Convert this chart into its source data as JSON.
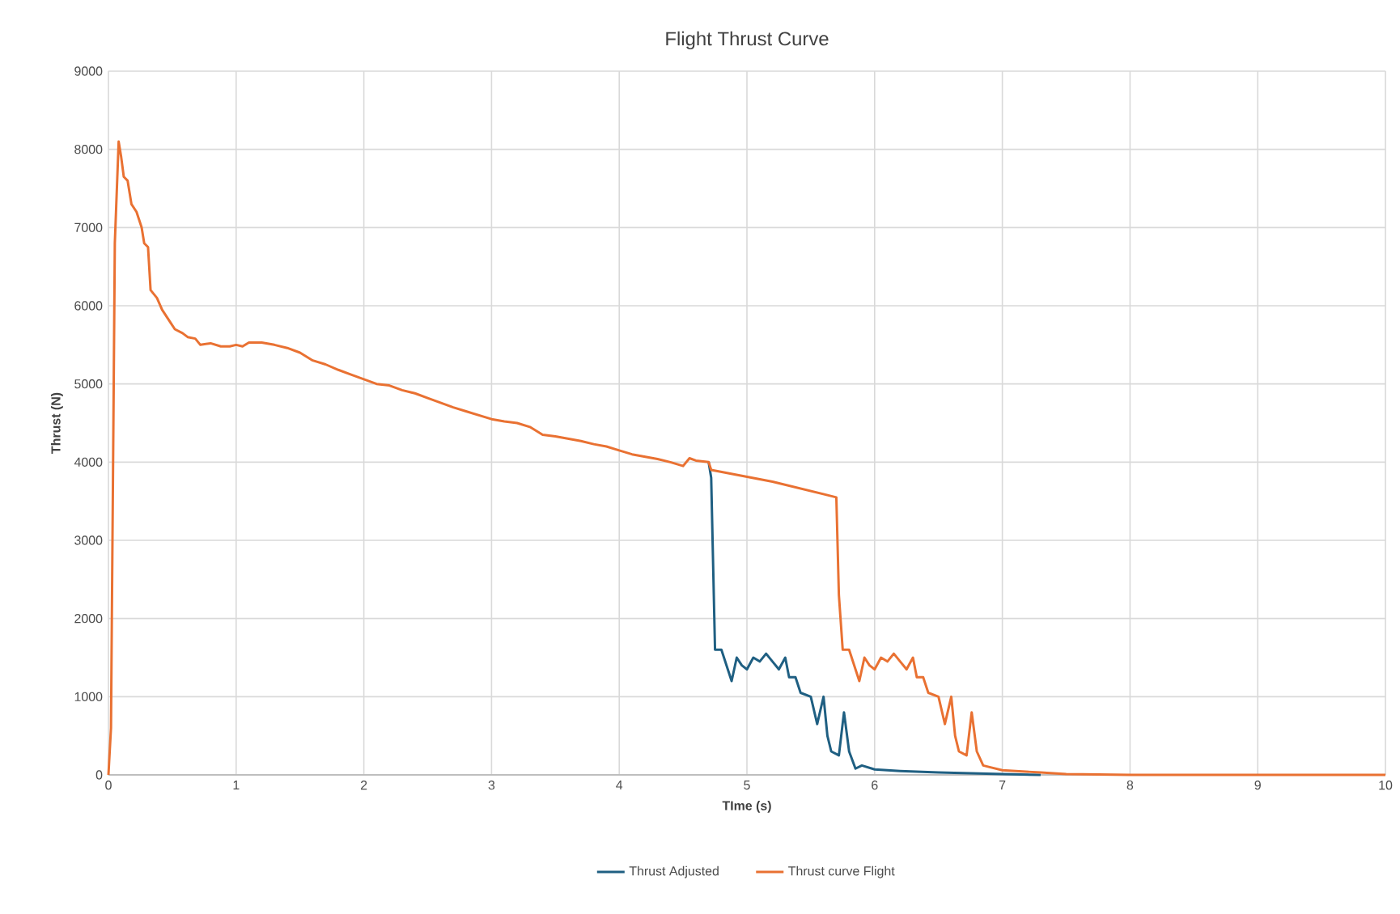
{
  "chart_data": {
    "type": "line",
    "title": "Flight Thrust Curve",
    "xlabel": "TIme (s)",
    "ylabel": "Thrust (N)",
    "xlim": [
      0,
      10
    ],
    "ylim": [
      0,
      9000
    ],
    "xticks": [
      0,
      1,
      2,
      3,
      4,
      5,
      6,
      7,
      8,
      9,
      10
    ],
    "yticks": [
      0,
      1000,
      2000,
      3000,
      4000,
      5000,
      6000,
      7000,
      8000,
      9000
    ],
    "grid": true,
    "legend": "bottom",
    "marker": "none",
    "line_style": "solid",
    "series": [
      {
        "name": "Thrust Adjusted",
        "color": "#1f5f82",
        "x": [
          4.7,
          4.72,
          4.75,
          4.8,
          4.85,
          4.88,
          4.92,
          4.96,
          5.0,
          5.05,
          5.1,
          5.15,
          5.2,
          5.25,
          5.3,
          5.33,
          5.38,
          5.42,
          5.5,
          5.55,
          5.6,
          5.63,
          5.66,
          5.72,
          5.76,
          5.8,
          5.85,
          5.9,
          6.0,
          6.1,
          6.2,
          6.5,
          7.0,
          7.3
        ],
        "values": [
          4000,
          3800,
          1600,
          1600,
          1350,
          1200,
          1500,
          1400,
          1350,
          1500,
          1450,
          1550,
          1450,
          1350,
          1500,
          1250,
          1250,
          1050,
          1000,
          650,
          1000,
          500,
          300,
          250,
          800,
          300,
          80,
          120,
          70,
          60,
          50,
          30,
          10,
          0
        ]
      },
      {
        "name": "Thrust curve Flight",
        "color": "#e97132",
        "x": [
          0,
          0.02,
          0.05,
          0.08,
          0.1,
          0.12,
          0.15,
          0.18,
          0.22,
          0.26,
          0.28,
          0.31,
          0.33,
          0.38,
          0.42,
          0.48,
          0.52,
          0.58,
          0.62,
          0.68,
          0.72,
          0.8,
          0.88,
          0.95,
          1.0,
          1.05,
          1.1,
          1.2,
          1.3,
          1.4,
          1.5,
          1.6,
          1.7,
          1.8,
          1.9,
          2.0,
          2.1,
          2.2,
          2.3,
          2.4,
          2.5,
          2.6,
          2.7,
          2.8,
          2.9,
          3.0,
          3.1,
          3.2,
          3.3,
          3.4,
          3.5,
          3.6,
          3.7,
          3.8,
          3.9,
          4.0,
          4.1,
          4.2,
          4.3,
          4.4,
          4.5,
          4.55,
          4.6,
          4.7,
          4.72,
          5.2,
          5.7,
          5.72,
          5.75,
          5.8,
          5.85,
          5.88,
          5.92,
          5.96,
          6.0,
          6.05,
          6.1,
          6.15,
          6.2,
          6.25,
          6.3,
          6.33,
          6.38,
          6.42,
          6.5,
          6.55,
          6.6,
          6.63,
          6.66,
          6.72,
          6.76,
          6.8,
          6.85,
          6.9,
          7.0,
          7.3,
          7.5,
          8.0,
          10.0
        ],
        "values": [
          0,
          600,
          6800,
          8100,
          7900,
          7650,
          7600,
          7300,
          7200,
          7000,
          6800,
          6750,
          6200,
          6100,
          5950,
          5800,
          5700,
          5650,
          5600,
          5580,
          5500,
          5520,
          5480,
          5480,
          5500,
          5480,
          5530,
          5530,
          5500,
          5460,
          5400,
          5300,
          5250,
          5180,
          5120,
          5060,
          5000,
          4980,
          4920,
          4880,
          4820,
          4760,
          4700,
          4650,
          4600,
          4550,
          4520,
          4500,
          4450,
          4350,
          4330,
          4300,
          4270,
          4230,
          4200,
          4150,
          4100,
          4070,
          4040,
          4000,
          3950,
          4050,
          4020,
          4000,
          3900,
          3750,
          3550,
          2300,
          1600,
          1600,
          1350,
          1200,
          1500,
          1400,
          1350,
          1500,
          1450,
          1550,
          1450,
          1350,
          1500,
          1250,
          1250,
          1050,
          1000,
          650,
          1000,
          500,
          300,
          250,
          800,
          300,
          120,
          100,
          60,
          30,
          10,
          0,
          0
        ]
      }
    ]
  }
}
